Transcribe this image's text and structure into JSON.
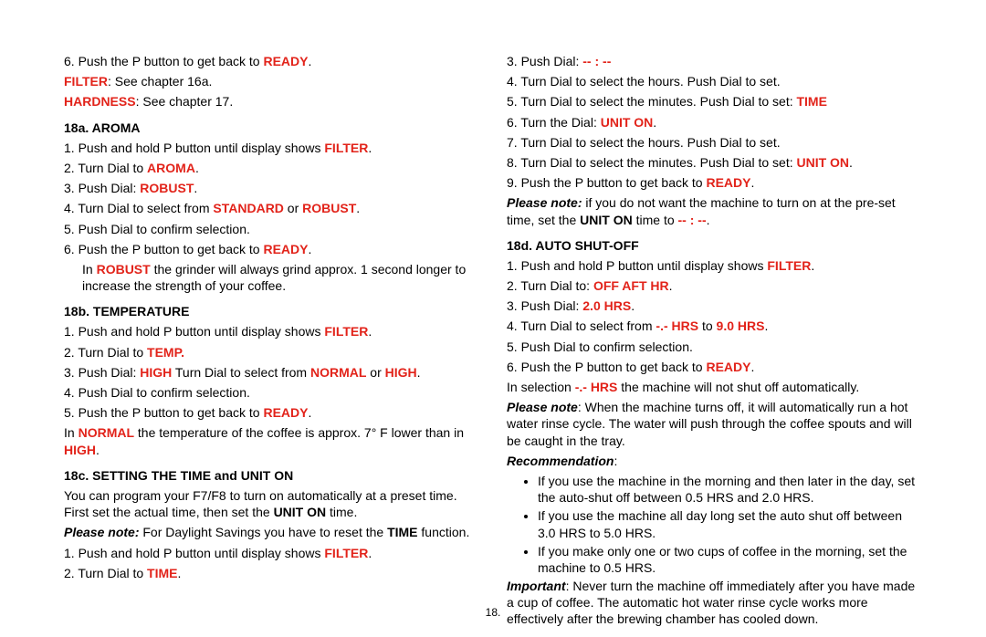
{
  "page_number": "18.",
  "colors": {
    "accent": "#e2231a",
    "text": "#000000",
    "bg": "#ffffff"
  },
  "left": {
    "top_line": {
      "prefix": "6. Push the P button to get back to ",
      "kw": "READY",
      "suffix": "."
    },
    "filter_label": "FILTER",
    "filter_rest": ": See chapter 16a.",
    "hardness_label": "HARDNESS",
    "hardness_rest": ": See chapter 17.",
    "s18a_title": "18a. AROMA",
    "s18a_1_a": "1. Push and hold P button until display shows ",
    "s18a_1_kw": "FILTER",
    "s18a_1_b": ".",
    "s18a_2_a": "2. Turn Dial to ",
    "s18a_2_kw": "AROMA",
    "s18a_2_b": ".",
    "s18a_3_a": "3. Push Dial: ",
    "s18a_3_kw": "ROBUST",
    "s18a_3_b": ".",
    "s18a_4_a": "4. Turn Dial to select from ",
    "s18a_4_kw1": "STANDARD",
    "s18a_4_mid": " or ",
    "s18a_4_kw2": "ROBUST",
    "s18a_4_b": ".",
    "s18a_5": "5. Push Dial to confirm selection.",
    "s18a_6_a": "6. Push the P button to get back to ",
    "s18a_6_kw": "READY",
    "s18a_6_b": ".",
    "s18a_note_a": "In ",
    "s18a_note_kw": "ROBUST",
    "s18a_note_b": " the grinder will always grind approx. 1 second longer to increase the strength of your coffee.",
    "s18b_title": "18b. TEMPERATURE",
    "s18b_1_a": "1. Push and hold P button until display shows ",
    "s18b_1_kw": "FILTER",
    "s18b_1_b": ".",
    "s18b_2_a": "2. Turn Dial to ",
    "s18b_2_kw": "TEMP.",
    "s18b_3_a": "3. Push Dial: ",
    "s18b_3_kw1": "HIGH",
    "s18b_3_mid": " Turn Dial to select from ",
    "s18b_3_kw2": "NORMAL",
    "s18b_3_or": " or ",
    "s18b_3_kw3": "HIGH",
    "s18b_3_b": ".",
    "s18b_4": "4. Push Dial to confirm selection.",
    "s18b_5_a": "5. Push the P button to get back to ",
    "s18b_5_kw": "READY",
    "s18b_5_b": ".",
    "s18b_note_a": "In ",
    "s18b_note_kw1": "NORMAL",
    "s18b_note_mid": " the temperature of the coffee is approx. 7° F lower than in ",
    "s18b_note_kw2": "HIGH",
    "s18b_note_b": ".",
    "s18c_title": "18c. SETTING THE TIME and UNIT ON",
    "s18c_intro_a": "You can program your F7/F8 to turn on automatically at a preset time. First set the actual time, then set the ",
    "s18c_intro_kw": "UNIT ON",
    "s18c_intro_b": " time.",
    "s18c_note_lbl": "Please note:",
    "s18c_note_a": " For Daylight Savings you have to reset the ",
    "s18c_note_kw": "TIME",
    "s18c_note_b": " function.",
    "s18c_1_a": "1. Push and hold P button until display shows ",
    "s18c_1_kw": "FILTER",
    "s18c_1_b": ".",
    "s18c_2_a": "2. Turn Dial to ",
    "s18c_2_kw": "TIME",
    "s18c_2_b": "."
  },
  "right": {
    "l3_a": "3. Push Dial: ",
    "l3_kw": "-- : --",
    "l4": "4. Turn Dial to select the hours. Push Dial to set.",
    "l5_a": "5. Turn Dial to select the minutes. Push Dial to set: ",
    "l5_kw": "TIME",
    "l6_a": "6. Turn the Dial: ",
    "l6_kw": "UNIT ON",
    "l6_b": ".",
    "l7": "7. Turn Dial to select the hours. Push Dial to set.",
    "l8_a": "8. Turn Dial to select the minutes. Push Dial to set: ",
    "l8_kw": "UNIT ON",
    "l8_b": ".",
    "l9_a": "9. Push the P button to get back to ",
    "l9_kw": "READY",
    "l9_b": ".",
    "pn_lbl": "Please note:",
    "pn_a": " if you do not want the machine to turn on at the pre-set time, set the ",
    "pn_kw1": "UNIT ON",
    "pn_mid": " time to ",
    "pn_kw2": "-- : --",
    "pn_b": ".",
    "s18d_title": "18d. AUTO SHUT-OFF",
    "d1_a": "1. Push and hold P button until display shows ",
    "d1_kw": "FILTER",
    "d1_b": ".",
    "d2_a": "2. Turn Dial to: ",
    "d2_kw": "OFF AFT HR",
    "d2_b": ".",
    "d3_a": "3. Push Dial: ",
    "d3_kw": "2.0 HRS",
    "d3_b": ".",
    "d4_a": "4. Turn Dial to select from ",
    "d4_kw1": "-.- HRS",
    "d4_mid": " to ",
    "d4_kw2": "9.0 HRS",
    "d4_b": ".",
    "d5": "5. Push Dial to confirm selection.",
    "d6_a": "6. Push the P button to get back to ",
    "d6_kw": "READY",
    "d6_b": ".",
    "d_note1_a": "In selection ",
    "d_note1_kw": "-.- HRS",
    "d_note1_b": " the machine will not shut off automatically.",
    "d_note2_lbl": "Please note",
    "d_note2_txt": ": When the machine turns off, it will automatically run a hot water rinse cycle. The water will push through the coffee spouts and will be caught in the tray.",
    "rec_lbl": "Recommendation",
    "rec_colon": ":",
    "rec_b1": "If you use the machine in the morning and then later in the day, set the auto-shut off between 0.5 HRS and 2.0 HRS.",
    "rec_b2": "If you use the machine all day long set the auto shut off between 3.0 HRS to 5.0 HRS.",
    "rec_b3": "If you make only one or two cups of coffee in the morning, set the machine to 0.5 HRS.",
    "imp_lbl": "Important",
    "imp_txt": ": Never turn the machine off immediately after you have made a cup of coffee. The automatic hot water rinse cycle works more effectively after the brewing chamber has cooled down."
  }
}
